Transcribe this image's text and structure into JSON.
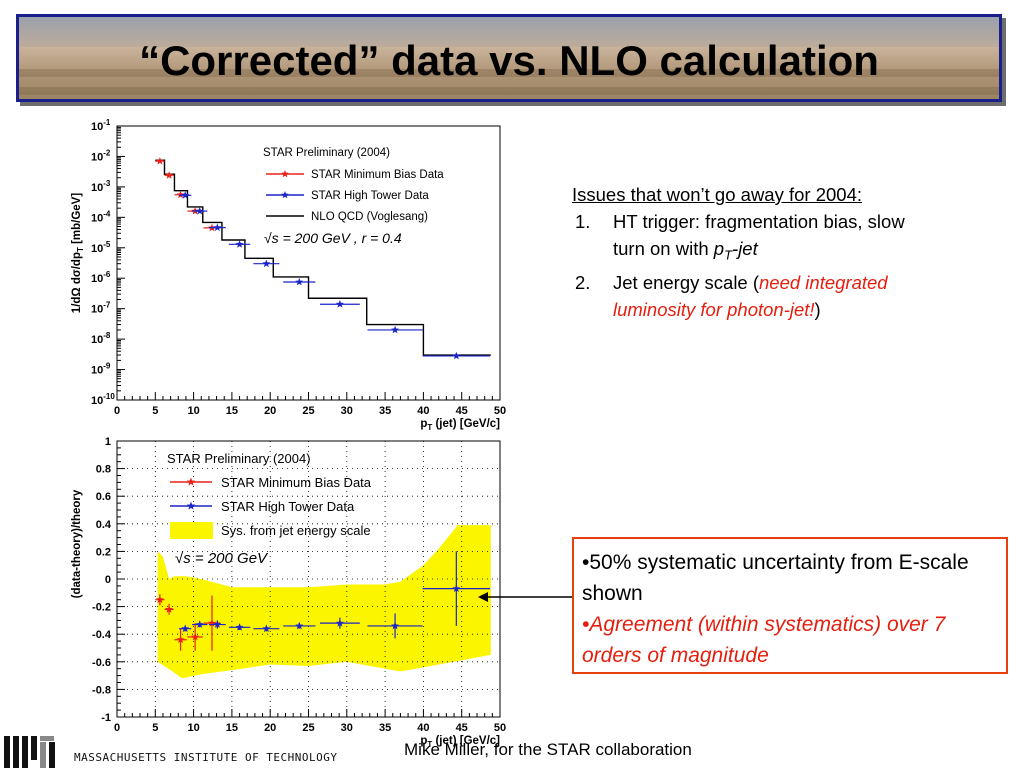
{
  "title": "“Corrected” data vs. NLO calculation",
  "issues": {
    "header": "Issues that won’t go away for 2004:",
    "items": [
      {
        "num": "1.",
        "text_a": "HT trigger: fragmentation bias, slow",
        "text_b": "turn on with ",
        "pt_p": "p",
        "pt_sub": "T",
        "pt_jet": "-jet"
      },
      {
        "num": "2.",
        "text_a": "Jet energy scale (",
        "red_a": "need integrated",
        "red_b": "luminosity for photon-jet!",
        "close": ")"
      }
    ]
  },
  "callout": {
    "line1": "•50% systematic uncertainty from E-scale shown",
    "line2": "•Agreement (within systematics) over 7 orders of magnitude"
  },
  "author": "Mike Miller, for the STAR collaboration",
  "institution": "MASSACHUSETTS INSTITUTE OF TECHNOLOGY",
  "colors": {
    "red": "#e8221a",
    "blue": "#1b24c8",
    "yellow": "#fbf500",
    "frame": "#1b1f8c",
    "callout_border": "#e5400e"
  },
  "chart_data": [
    {
      "type": "line",
      "log_y": true,
      "title": "STAR Preliminary (2004)",
      "xlabel_p": "p",
      "xlabel_sub": "T",
      "xlabel_rest": " (jet) [GeV/c]",
      "ylabel": "1/dΩ dσ/dp",
      "ylabel_sub": "T",
      "ylabel_unit": " [mb/GeV]",
      "xlim": [
        0,
        50
      ],
      "ylim_exp": [
        -10,
        -1
      ],
      "x_ticks": [
        "0",
        "5",
        "10",
        "15",
        "20",
        "25",
        "30",
        "35",
        "40",
        "45",
        "50"
      ],
      "y_ticks": [
        {
          "base": "10",
          "exp": "-1"
        },
        {
          "base": "10",
          "exp": "-2"
        },
        {
          "base": "10",
          "exp": "-3"
        },
        {
          "base": "10",
          "exp": "-4"
        },
        {
          "base": "10",
          "exp": "-5"
        },
        {
          "base": "10",
          "exp": "-6"
        },
        {
          "base": "10",
          "exp": "-7"
        },
        {
          "base": "10",
          "exp": "-8"
        },
        {
          "base": "10",
          "exp": "-9"
        },
        {
          "base": "10",
          "exp": "-10"
        }
      ],
      "legend": [
        "STAR Minimum Bias Data",
        "STAR High Tower Data",
        "NLO QCD (Voglesang)"
      ],
      "formula": "√s = 200 GeV , r = 0.4",
      "series": [
        {
          "name": "STAR Minimum Bias Data",
          "color": "#e8221a",
          "points": [
            {
              "x": 5.6,
              "y": 0.007,
              "xerr": 0.6
            },
            {
              "x": 6.8,
              "y": 0.0024,
              "xerr": 0.6
            },
            {
              "x": 8.3,
              "y": 0.00055,
              "xerr": 0.8
            },
            {
              "x": 10.2,
              "y": 0.00016,
              "xerr": 1.0
            },
            {
              "x": 12.4,
              "y": 4.5e-05,
              "xerr": 1.1
            }
          ]
        },
        {
          "name": "STAR High Tower Data",
          "color": "#1b24c8",
          "points": [
            {
              "x": 8.9,
              "y": 0.00053,
              "xerr": 0.8
            },
            {
              "x": 10.8,
              "y": 0.00016,
              "xerr": 1.0
            },
            {
              "x": 13.1,
              "y": 4.6e-05,
              "xerr": 1.1
            },
            {
              "x": 16.0,
              "y": 1.3e-05,
              "xerr": 1.4
            },
            {
              "x": 19.5,
              "y": 3e-06,
              "xerr": 1.7
            },
            {
              "x": 23.8,
              "y": 7.5e-07,
              "xerr": 2.1
            },
            {
              "x": 29.1,
              "y": 1.4e-07,
              "xerr": 2.6
            },
            {
              "x": 36.3,
              "y": 2e-08,
              "xerr": 3.6
            },
            {
              "x": 44.3,
              "y": 2.8e-09,
              "xerr": 4.4
            }
          ]
        },
        {
          "name": "NLO QCD (Voglesang)",
          "color": "#000000",
          "steps": [
            {
              "x0": 5.0,
              "x1": 6.2,
              "y": 0.0075
            },
            {
              "x0": 6.2,
              "x1": 7.5,
              "y": 0.0026
            },
            {
              "x0": 7.5,
              "x1": 9.2,
              "y": 0.00075
            },
            {
              "x0": 9.2,
              "x1": 11.2,
              "y": 0.00022
            },
            {
              "x0": 11.2,
              "x1": 13.7,
              "y": 6.8e-05
            },
            {
              "x0": 13.7,
              "x1": 16.7,
              "y": 1.8e-05
            },
            {
              "x0": 16.7,
              "x1": 20.4,
              "y": 4.5e-06
            },
            {
              "x0": 20.4,
              "x1": 25.0,
              "y": 1.1e-06
            },
            {
              "x0": 25.0,
              "x1": 32.6,
              "y": 2.2e-07
            },
            {
              "x0": 32.6,
              "x1": 40.0,
              "y": 3e-08
            },
            {
              "x0": 40.0,
              "x1": 48.8,
              "y": 3e-09
            }
          ]
        }
      ]
    },
    {
      "type": "scatter",
      "title": "STAR Preliminary (2004)",
      "xlabel_p": "p",
      "xlabel_sub": "T",
      "xlabel_rest": " (jet) [GeV/c]",
      "ylabel": "(data-theory)/theory",
      "xlim": [
        0,
        50
      ],
      "ylim": [
        -1,
        1
      ],
      "grid": "dotted",
      "x_ticks": [
        "0",
        "5",
        "10",
        "15",
        "20",
        "25",
        "30",
        "35",
        "40",
        "45",
        "50"
      ],
      "y_ticks": [
        "1",
        "0.8",
        "0.6",
        "0.4",
        "0.2",
        "0",
        "-0.2",
        "-0.4",
        "-0.6",
        "-0.8",
        "-1"
      ],
      "legend": [
        "STAR Minimum Bias Data",
        "STAR High Tower Data",
        "Sys. from jet energy scale"
      ],
      "formula": "√s = 200 GeV",
      "band": {
        "name": "Sys. from jet energy scale",
        "color": "#fbf500",
        "upper": [
          [
            5.3,
            0.2
          ],
          [
            6.0,
            0.16
          ],
          [
            6.8,
            0.0
          ],
          [
            7.5,
            0.02
          ],
          [
            9,
            0.02
          ],
          [
            11,
            0.0
          ],
          [
            13,
            -0.03
          ],
          [
            15,
            -0.06
          ],
          [
            20,
            -0.06
          ],
          [
            25,
            -0.06
          ],
          [
            30,
            -0.04
          ],
          [
            35,
            -0.04
          ],
          [
            37,
            -0.02
          ],
          [
            40,
            0.1
          ],
          [
            42,
            0.22
          ],
          [
            44.5,
            0.39
          ],
          [
            48.8,
            0.39
          ]
        ],
        "lower": [
          [
            5.3,
            -0.6
          ],
          [
            7,
            -0.66
          ],
          [
            8.5,
            -0.72
          ],
          [
            11,
            -0.69
          ],
          [
            15,
            -0.66
          ],
          [
            20,
            -0.62
          ],
          [
            25,
            -0.63
          ],
          [
            30,
            -0.6
          ],
          [
            33,
            -0.63
          ],
          [
            37,
            -0.67
          ],
          [
            40,
            -0.64
          ],
          [
            44,
            -0.6
          ],
          [
            48.8,
            -0.55
          ]
        ]
      },
      "series": [
        {
          "name": "STAR Minimum Bias Data",
          "color": "#e8221a",
          "points": [
            {
              "x": 5.6,
              "y": -0.15,
              "xerr": 0.6,
              "yerr": 0.04
            },
            {
              "x": 6.8,
              "y": -0.22,
              "xerr": 0.6,
              "yerr": 0.04
            },
            {
              "x": 8.3,
              "y": -0.44,
              "xerr": 0.8,
              "yerr": 0.08
            },
            {
              "x": 10.2,
              "y": -0.42,
              "xerr": 1.0,
              "yerr": 0.1
            },
            {
              "x": 12.4,
              "y": -0.32,
              "xerr": 1.1,
              "yerr": 0.2
            }
          ]
        },
        {
          "name": "STAR High Tower Data",
          "color": "#1b24c8",
          "points": [
            {
              "x": 8.9,
              "y": -0.36,
              "xerr": 0.8,
              "yerr": 0.02
            },
            {
              "x": 10.8,
              "y": -0.33,
              "xerr": 1.0,
              "yerr": 0.02
            },
            {
              "x": 13.1,
              "y": -0.33,
              "xerr": 1.1,
              "yerr": 0.03
            },
            {
              "x": 16.0,
              "y": -0.35,
              "xerr": 1.4,
              "yerr": 0.02
            },
            {
              "x": 19.5,
              "y": -0.36,
              "xerr": 1.7,
              "yerr": 0.02
            },
            {
              "x": 23.8,
              "y": -0.34,
              "xerr": 2.1,
              "yerr": 0.02
            },
            {
              "x": 29.1,
              "y": -0.32,
              "xerr": 2.6,
              "yerr": 0.04
            },
            {
              "x": 36.3,
              "y": -0.34,
              "xerr": 3.6,
              "yerr": 0.09
            },
            {
              "x": 44.3,
              "y": -0.07,
              "xerr": 4.4,
              "yerr": 0.27
            }
          ]
        }
      ]
    }
  ]
}
